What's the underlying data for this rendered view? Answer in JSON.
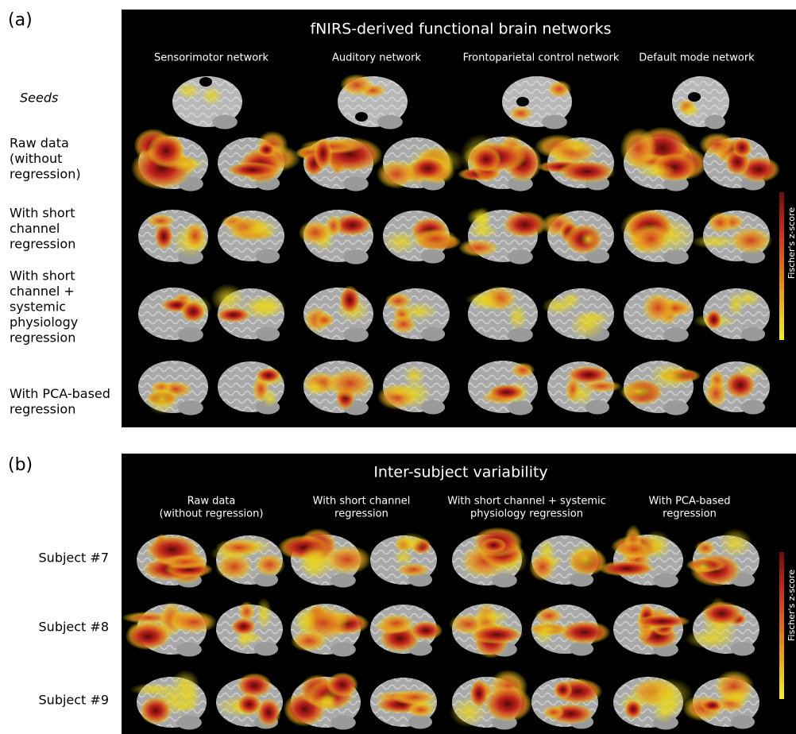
{
  "panel_a": {
    "label": "(a)",
    "title": "fNIRS-derived functional brain networks",
    "columns": [
      "Sensorimotor network",
      "Auditory network",
      "Frontoparietal control network",
      "Default mode network"
    ],
    "seeds_label": "Seeds",
    "rows": [
      [
        "Raw data",
        "(without",
        "regression)"
      ],
      [
        "With short",
        "channel",
        "regression"
      ],
      [
        "With short",
        "channel +",
        "systemic",
        "physiology",
        "regression"
      ],
      [
        "With PCA-based",
        "regression"
      ]
    ],
    "colorbar_label": "Fischer's z-score"
  },
  "panel_b": {
    "label": "(b)",
    "title": "Inter-subject variability",
    "columns": [
      [
        "Raw data",
        "(without regression)"
      ],
      [
        "With short channel",
        "regression"
      ],
      [
        "With short channel + systemic",
        "physiology regression"
      ],
      [
        "With PCA-based",
        "regression"
      ]
    ],
    "rows": [
      "Subject #7",
      "Subject #8",
      "Subject #9"
    ],
    "colorbar_label": "Fischer's z-score"
  }
}
